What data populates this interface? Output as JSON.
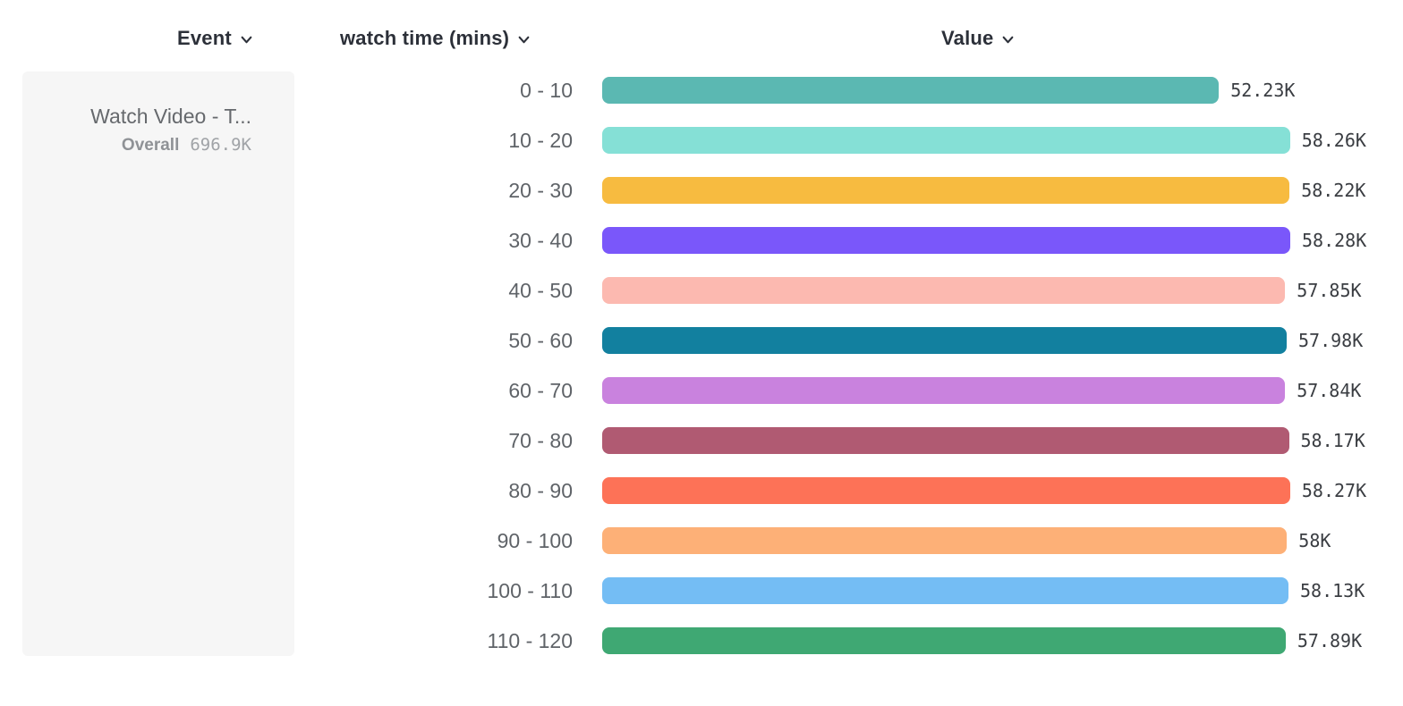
{
  "header": {
    "columns": [
      {
        "id": "event",
        "label": "Event",
        "icon": "chevron-down-icon"
      },
      {
        "id": "breakdown",
        "label": "watch time (mins)",
        "icon": "chevron-down-icon"
      },
      {
        "id": "value",
        "label": "Value",
        "icon": "chevron-down-icon"
      }
    ]
  },
  "event_card": {
    "title": "Watch Video - T...",
    "overall_label": "Overall",
    "overall_value": "696.9K"
  },
  "chart_data": {
    "type": "bar",
    "orientation": "horizontal",
    "title": "",
    "xlabel": "Value",
    "ylabel": "watch time (mins)",
    "categories": [
      "0 - 10",
      "10 - 20",
      "20 - 30",
      "30 - 40",
      "40 - 50",
      "50 - 60",
      "60 - 70",
      "70 - 80",
      "80 - 90",
      "90 - 100",
      "100 - 110",
      "110 - 120"
    ],
    "values": [
      52230,
      58260,
      58220,
      58280,
      57850,
      57980,
      57840,
      58170,
      58270,
      58000,
      58130,
      57890
    ],
    "value_labels": [
      "52.23K",
      "58.26K",
      "58.22K",
      "58.28K",
      "57.85K",
      "57.98K",
      "57.84K",
      "58.17K",
      "58.27K",
      "58K",
      "58.13K",
      "57.89K"
    ],
    "bar_colors": [
      "#5bb8b2",
      "#85e0d6",
      "#f7bb40",
      "#7a57fa",
      "#fcb9b0",
      "#12809f",
      "#c982de",
      "#b05a72",
      "#fd7257",
      "#fdb077",
      "#74bdf4",
      "#3fa873"
    ],
    "xlim": [
      0,
      58280
    ],
    "grid": false,
    "legend": false
  },
  "colors": {
    "header_text": "#2c3039",
    "category_text": "#5f6368",
    "value_text": "#3a3d42",
    "card_bg": "#f6f6f6"
  }
}
